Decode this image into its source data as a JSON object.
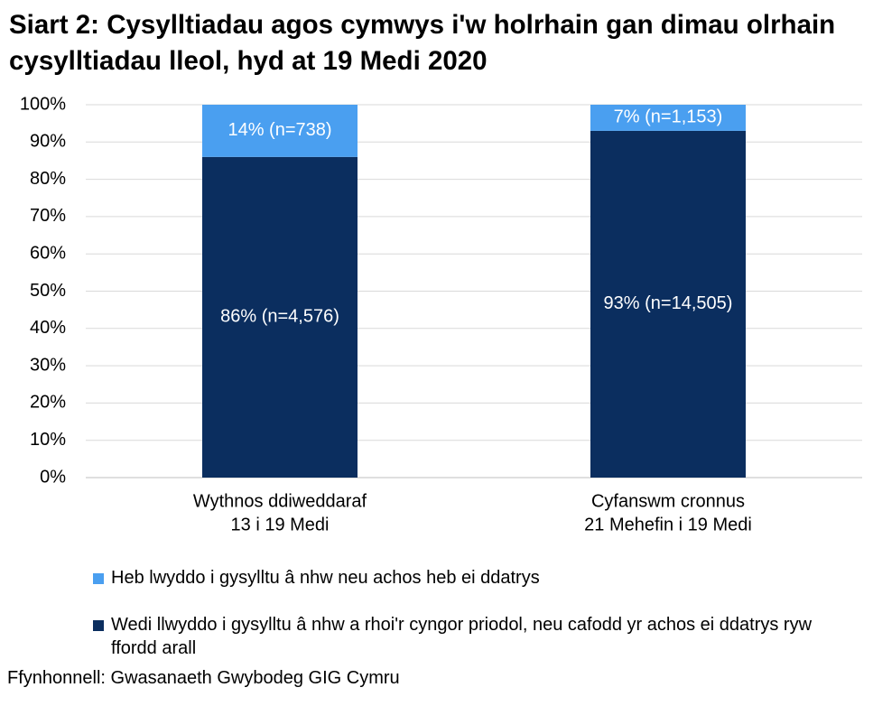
{
  "chart_data": {
    "type": "stacked-bar",
    "title": "Siart 2: Cysylltiadau agos cymwys i'w holrhain gan dimau olrhain cysylltiadau lleol, hyd at 19 Medi 2020",
    "categories": [
      [
        "Wythnos ddiweddaraf",
        "13 i 19 Medi"
      ],
      [
        "Cyfanswm cronnus",
        "21 Mehefin i 19 Medi"
      ]
    ],
    "series": [
      {
        "name": "Wedi llwyddo i gysylltu â nhw a rhoi'r cyngor priodol, neu cafodd yr achos ei ddatrys ryw ffordd arall",
        "color": "#0b2e5f",
        "values": [
          86,
          93
        ],
        "value_labels": [
          "86% (n=4,576)",
          "93% (n=14,505)"
        ]
      },
      {
        "name": "Heb lwyddo i gysylltu â nhw neu achos heb ei ddatrys",
        "color": "#4a9ff0",
        "values": [
          14,
          7
        ],
        "value_labels": [
          "14% (n=738)",
          "7% (n=1,153)"
        ]
      }
    ],
    "ylim": [
      0,
      100
    ],
    "yticks": [
      {
        "value": 0,
        "label": "0%"
      },
      {
        "value": 10,
        "label": "10%"
      },
      {
        "value": 20,
        "label": "20%"
      },
      {
        "value": 30,
        "label": "30%"
      },
      {
        "value": 40,
        "label": "40%"
      },
      {
        "value": 50,
        "label": "50%"
      },
      {
        "value": 60,
        "label": "60%"
      },
      {
        "value": 70,
        "label": "70%"
      },
      {
        "value": 80,
        "label": "80%"
      },
      {
        "value": 90,
        "label": "90%"
      },
      {
        "value": 100,
        "label": "100%"
      }
    ],
    "grid": true,
    "legend": "bottom",
    "source": "Ffynhonnell: Gwasanaeth Gwybodeg GIG Cymru"
  }
}
